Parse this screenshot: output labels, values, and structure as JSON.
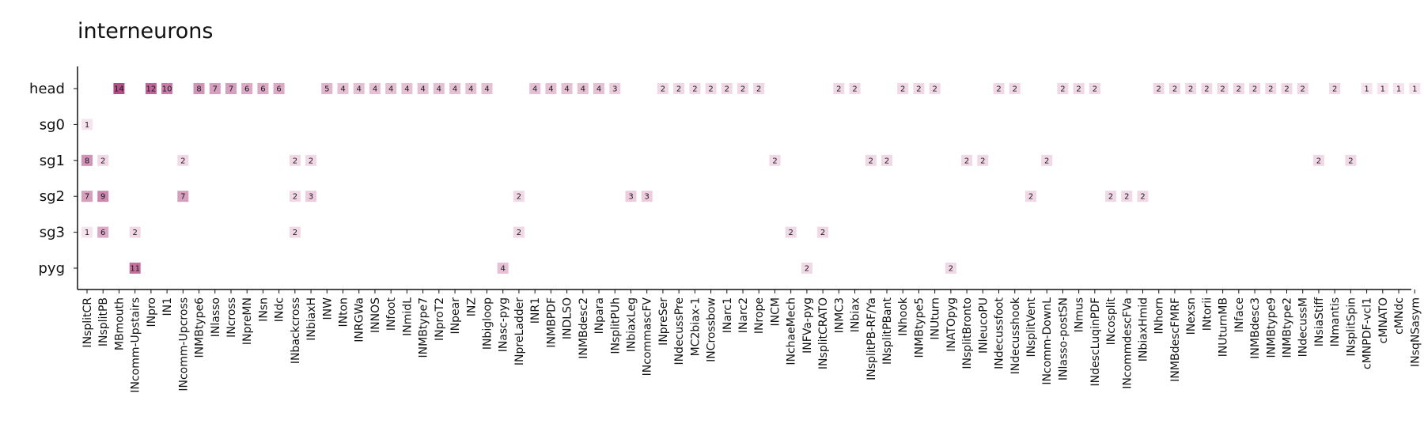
{
  "chart_data": {
    "type": "heatmap",
    "title": "interneurons",
    "xlabel": "",
    "ylabel": "",
    "grid": false,
    "legend": "none",
    "color_low": "#f6e3ee",
    "color_high": "#b24f87",
    "value_range": [
      1,
      14
    ],
    "rows": [
      "head",
      "sg0",
      "sg1",
      "sg2",
      "sg3",
      "pyg"
    ],
    "columns": [
      "INsplitCR",
      "INsplitPB",
      "MBmouth",
      "INcomm-Upstairs",
      "INpro",
      "IN1",
      "INcomm-Upcross",
      "INMBtype6",
      "INlasso",
      "INcross",
      "INpreMN",
      "INsn",
      "INdc",
      "INbackcross",
      "INbiaxH",
      "INW",
      "INton",
      "INRGWa",
      "INNOS",
      "INfoot",
      "INmidL",
      "INMBtype7",
      "INproT2",
      "INpear",
      "INZ",
      "INbigloop",
      "INasc-pyg",
      "INpreLadder",
      "INR1",
      "INMBPDF",
      "INDLSO",
      "INMBdesc2",
      "INpara",
      "INsplitPUh",
      "INbiaxLeg",
      "INcommascFV",
      "INpreSer",
      "INdecussPre",
      "MC2biax-1",
      "INCrossbow",
      "INarc1",
      "INarc2",
      "INrope",
      "INCM",
      "INchaeMech",
      "INFVa-pyg",
      "INsplitCRATO",
      "INMC3",
      "INbiax",
      "INsplitPB-RF/Ya",
      "INsplitPBant",
      "INhook",
      "INMBtype5",
      "INUturn",
      "INATOpyg",
      "INsplitBronto",
      "INleucoPU",
      "INdecussfoot",
      "INdecusshook",
      "INsplitVent",
      "INcomm-DownL",
      "INlasso-postSN",
      "INmus",
      "INdescLuqinPDF",
      "INcosplit",
      "INcommdescFVa",
      "INbiaxHmid",
      "INhorn",
      "INMBdescFMRF",
      "INexsn",
      "INtorii",
      "INUturnMB",
      "INface",
      "INMBdesc3",
      "INMBtype9",
      "INMBtype2",
      "INdecussM",
      "INsiaStiff",
      "INmantis",
      "INsplitSpin",
      "cMNPDF-vcl1",
      "cMNATO",
      "cMNdc",
      "INsqNSasym"
    ],
    "cells": [
      {
        "row": "head",
        "col": "MBmouth",
        "value": 14
      },
      {
        "row": "head",
        "col": "INpro",
        "value": 12
      },
      {
        "row": "head",
        "col": "IN1",
        "value": 10
      },
      {
        "row": "head",
        "col": "INMBtype6",
        "value": 8
      },
      {
        "row": "head",
        "col": "INlasso",
        "value": 7
      },
      {
        "row": "head",
        "col": "INcross",
        "value": 7
      },
      {
        "row": "head",
        "col": "INpreMN",
        "value": 6
      },
      {
        "row": "head",
        "col": "INsn",
        "value": 6
      },
      {
        "row": "head",
        "col": "INdc",
        "value": 6
      },
      {
        "row": "head",
        "col": "INW",
        "value": 5
      },
      {
        "row": "head",
        "col": "INton",
        "value": 4
      },
      {
        "row": "head",
        "col": "INRGWa",
        "value": 4
      },
      {
        "row": "head",
        "col": "INNOS",
        "value": 4
      },
      {
        "row": "head",
        "col": "INfoot",
        "value": 4
      },
      {
        "row": "head",
        "col": "INmidL",
        "value": 4
      },
      {
        "row": "head",
        "col": "INMBtype7",
        "value": 4
      },
      {
        "row": "head",
        "col": "INproT2",
        "value": 4
      },
      {
        "row": "head",
        "col": "INpear",
        "value": 4
      },
      {
        "row": "head",
        "col": "INZ",
        "value": 4
      },
      {
        "row": "head",
        "col": "INbigloop",
        "value": 4
      },
      {
        "row": "head",
        "col": "INR1",
        "value": 4
      },
      {
        "row": "head",
        "col": "INMBPDF",
        "value": 4
      },
      {
        "row": "head",
        "col": "INDLSO",
        "value": 4
      },
      {
        "row": "head",
        "col": "INMBdesc2",
        "value": 4
      },
      {
        "row": "head",
        "col": "INpara",
        "value": 4
      },
      {
        "row": "head",
        "col": "INsplitPUh",
        "value": 3
      },
      {
        "row": "head",
        "col": "INpreSer",
        "value": 2
      },
      {
        "row": "head",
        "col": "INdecussPre",
        "value": 2
      },
      {
        "row": "head",
        "col": "MC2biax-1",
        "value": 2
      },
      {
        "row": "head",
        "col": "INCrossbow",
        "value": 2
      },
      {
        "row": "head",
        "col": "INarc1",
        "value": 2
      },
      {
        "row": "head",
        "col": "INarc2",
        "value": 2
      },
      {
        "row": "head",
        "col": "INrope",
        "value": 2
      },
      {
        "row": "head",
        "col": "INMC3",
        "value": 2
      },
      {
        "row": "head",
        "col": "INbiax",
        "value": 2
      },
      {
        "row": "head",
        "col": "INhook",
        "value": 2
      },
      {
        "row": "head",
        "col": "INMBtype5",
        "value": 2
      },
      {
        "row": "head",
        "col": "INUturn",
        "value": 2
      },
      {
        "row": "head",
        "col": "INdecussfoot",
        "value": 2
      },
      {
        "row": "head",
        "col": "INdecusshook",
        "value": 2
      },
      {
        "row": "head",
        "col": "INlasso-postSN",
        "value": 2
      },
      {
        "row": "head",
        "col": "INmus",
        "value": 2
      },
      {
        "row": "head",
        "col": "INdescLuqinPDF",
        "value": 2
      },
      {
        "row": "head",
        "col": "INhorn",
        "value": 2
      },
      {
        "row": "head",
        "col": "INMBdescFMRF",
        "value": 2
      },
      {
        "row": "head",
        "col": "INexsn",
        "value": 2
      },
      {
        "row": "head",
        "col": "INtorii",
        "value": 2
      },
      {
        "row": "head",
        "col": "INUturnMB",
        "value": 2
      },
      {
        "row": "head",
        "col": "INface",
        "value": 2
      },
      {
        "row": "head",
        "col": "INMBdesc3",
        "value": 2
      },
      {
        "row": "head",
        "col": "INMBtype9",
        "value": 2
      },
      {
        "row": "head",
        "col": "INMBtype2",
        "value": 2
      },
      {
        "row": "head",
        "col": "INdecussM",
        "value": 2
      },
      {
        "row": "head",
        "col": "INmantis",
        "value": 2
      },
      {
        "row": "head",
        "col": "cMNPDF-vcl1",
        "value": 1
      },
      {
        "row": "head",
        "col": "cMNATO",
        "value": 1
      },
      {
        "row": "head",
        "col": "cMNdc",
        "value": 1
      },
      {
        "row": "head",
        "col": "INsqNSasym",
        "value": 1
      },
      {
        "row": "sg0",
        "col": "INsplitCR",
        "value": 1
      },
      {
        "row": "sg1",
        "col": "INsplitCR",
        "value": 8
      },
      {
        "row": "sg1",
        "col": "INsplitPB",
        "value": 2
      },
      {
        "row": "sg1",
        "col": "INcomm-Upcross",
        "value": 2
      },
      {
        "row": "sg1",
        "col": "INbackcross",
        "value": 2
      },
      {
        "row": "sg1",
        "col": "INbiaxH",
        "value": 2
      },
      {
        "row": "sg1",
        "col": "INCM",
        "value": 2
      },
      {
        "row": "sg1",
        "col": "INsplitPB-RF/Ya",
        "value": 2
      },
      {
        "row": "sg1",
        "col": "INsplitPBant",
        "value": 2
      },
      {
        "row": "sg1",
        "col": "INsplitBronto",
        "value": 2
      },
      {
        "row": "sg1",
        "col": "INleucoPU",
        "value": 2
      },
      {
        "row": "sg1",
        "col": "INcomm-DownL",
        "value": 2
      },
      {
        "row": "sg1",
        "col": "INsiaStiff",
        "value": 2
      },
      {
        "row": "sg1",
        "col": "INsplitSpin",
        "value": 2
      },
      {
        "row": "sg2",
        "col": "INsplitCR",
        "value": 7
      },
      {
        "row": "sg2",
        "col": "INsplitPB",
        "value": 9
      },
      {
        "row": "sg2",
        "col": "INcomm-Upcross",
        "value": 7
      },
      {
        "row": "sg2",
        "col": "INbackcross",
        "value": 2
      },
      {
        "row": "sg2",
        "col": "INbiaxH",
        "value": 3
      },
      {
        "row": "sg2",
        "col": "INpreLadder",
        "value": 2
      },
      {
        "row": "sg2",
        "col": "INbiaxLeg",
        "value": 3
      },
      {
        "row": "sg2",
        "col": "INcommascFV",
        "value": 3
      },
      {
        "row": "sg2",
        "col": "INsplitVent",
        "value": 2
      },
      {
        "row": "sg2",
        "col": "INcosplit",
        "value": 2
      },
      {
        "row": "sg2",
        "col": "INcommdescFVa",
        "value": 2
      },
      {
        "row": "sg2",
        "col": "INbiaxHmid",
        "value": 2
      },
      {
        "row": "sg3",
        "col": "INsplitCR",
        "value": 1
      },
      {
        "row": "sg3",
        "col": "INsplitPB",
        "value": 6
      },
      {
        "row": "sg3",
        "col": "INcomm-Upstairs",
        "value": 2
      },
      {
        "row": "sg3",
        "col": "INbackcross",
        "value": 2
      },
      {
        "row": "sg3",
        "col": "INpreLadder",
        "value": 2
      },
      {
        "row": "sg3",
        "col": "INchaeMech",
        "value": 2
      },
      {
        "row": "sg3",
        "col": "INsplitCRATO",
        "value": 2
      },
      {
        "row": "pyg",
        "col": "INcomm-Upstairs",
        "value": 11
      },
      {
        "row": "pyg",
        "col": "INasc-pyg",
        "value": 4
      },
      {
        "row": "pyg",
        "col": "INFVa-pyg",
        "value": 2
      },
      {
        "row": "pyg",
        "col": "INATOpyg",
        "value": 2
      }
    ]
  }
}
